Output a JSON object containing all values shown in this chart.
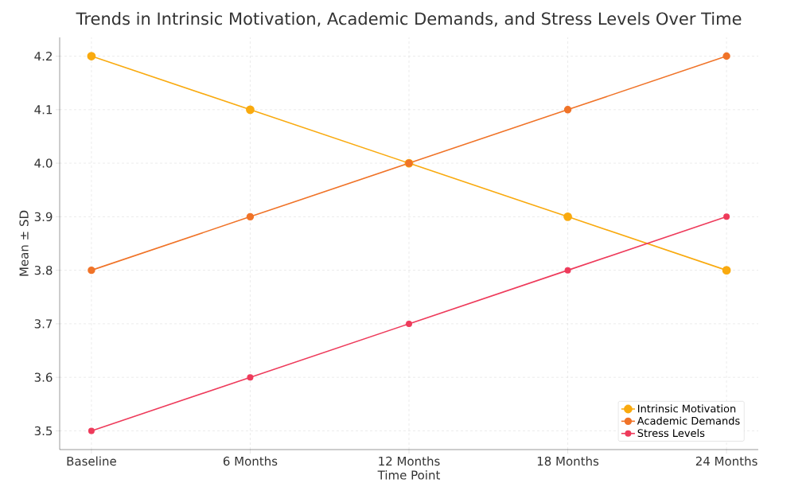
{
  "chart_data": {
    "type": "line",
    "title": "Trends in Intrinsic Motivation, Academic Demands, and Stress Levels Over Time",
    "xlabel": "Time Point",
    "ylabel": "Mean ± SD",
    "categories": [
      "Baseline",
      "6 Months",
      "12 Months",
      "18 Months",
      "24 Months"
    ],
    "series": [
      {
        "name": "Intrinsic Motivation",
        "color": "#f9aa0f",
        "values": [
          4.2,
          4.1,
          4.0,
          3.9,
          3.8
        ]
      },
      {
        "name": "Academic Demands",
        "color": "#f07328",
        "values": [
          3.8,
          3.9,
          4.0,
          4.1,
          4.2
        ]
      },
      {
        "name": "Stress Levels",
        "color": "#ee3b5b",
        "values": [
          3.5,
          3.6,
          3.7,
          3.8,
          3.9
        ]
      }
    ],
    "ylim": [
      3.465,
      4.235
    ],
    "yticks": [
      {
        "value": 3.5,
        "label": "3.5"
      },
      {
        "value": 3.6,
        "label": "3.6"
      },
      {
        "value": 3.7,
        "label": "3.7"
      },
      {
        "value": 3.8,
        "label": "3.8"
      },
      {
        "value": 3.9,
        "label": "3.9"
      },
      {
        "value": 4.0,
        "label": "4.0"
      },
      {
        "value": 4.1,
        "label": "4.1"
      },
      {
        "value": 4.2,
        "label": "4.2"
      }
    ],
    "grid": true,
    "legend": "bottom right",
    "marker": "circle",
    "line_style": "solid"
  }
}
